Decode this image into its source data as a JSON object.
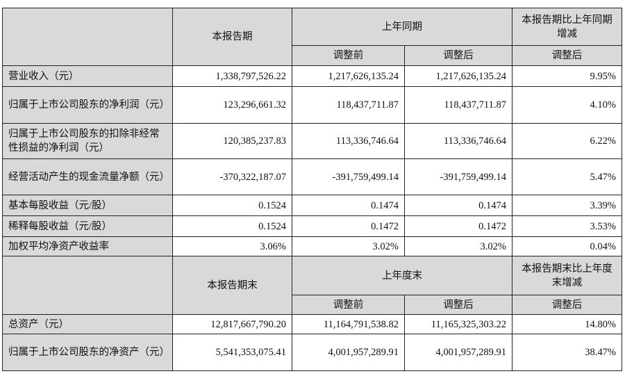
{
  "header1": {
    "current": "本报告期",
    "prior": "上年同期",
    "change": "本报告期比上年同期增减",
    "before": "调整前",
    "after": "调整后",
    "change_after": "调整后"
  },
  "rows1": [
    {
      "label": "营业收入（元）",
      "cur": "1,338,797,526.22",
      "before": "1,217,626,135.24",
      "after": "1,217,626,135.24",
      "chg": "9.95%"
    },
    {
      "label": "归属于上市公司股东的净利润（元）",
      "cur": "123,296,661.32",
      "before": "118,437,711.87",
      "after": "118,437,711.87",
      "chg": "4.10%"
    },
    {
      "label": "归属于上市公司股东的扣除非经常性损益的净利润（元）",
      "cur": "120,385,237.83",
      "before": "113,336,746.64",
      "after": "113,336,746.64",
      "chg": "6.22%"
    },
    {
      "label": "经营活动产生的现金流量净额（元）",
      "cur": "-370,322,187.07",
      "before": "-391,759,499.14",
      "after": "-391,759,499.14",
      "chg": "5.47%"
    },
    {
      "label": "基本每股收益（元/股）",
      "cur": "0.1524",
      "before": "0.1474",
      "after": "0.1474",
      "chg": "3.39%"
    },
    {
      "label": "稀释每股收益（元/股）",
      "cur": "0.1524",
      "before": "0.1472",
      "after": "0.1472",
      "chg": "3.53%"
    },
    {
      "label": "加权平均净资产收益率",
      "cur": "3.06%",
      "before": "3.02%",
      "after": "3.02%",
      "chg": "0.04%"
    }
  ],
  "header2": {
    "current": "本报告期末",
    "prior": "上年度末",
    "change": "本报告期末比上年度末增减",
    "before": "调整前",
    "after": "调整后",
    "change_after": "调整后"
  },
  "rows2": [
    {
      "label": "总资产（元）",
      "cur": "12,817,667,790.20",
      "before": "11,164,791,538.82",
      "after": "11,165,325,303.22",
      "chg": "14.80%"
    },
    {
      "label": "归属于上市公司股东的净资产（元）",
      "cur": "5,541,353,075.41",
      "before": "4,001,957,289.91",
      "after": "4,001,957,289.91",
      "chg": "38.47%"
    }
  ]
}
